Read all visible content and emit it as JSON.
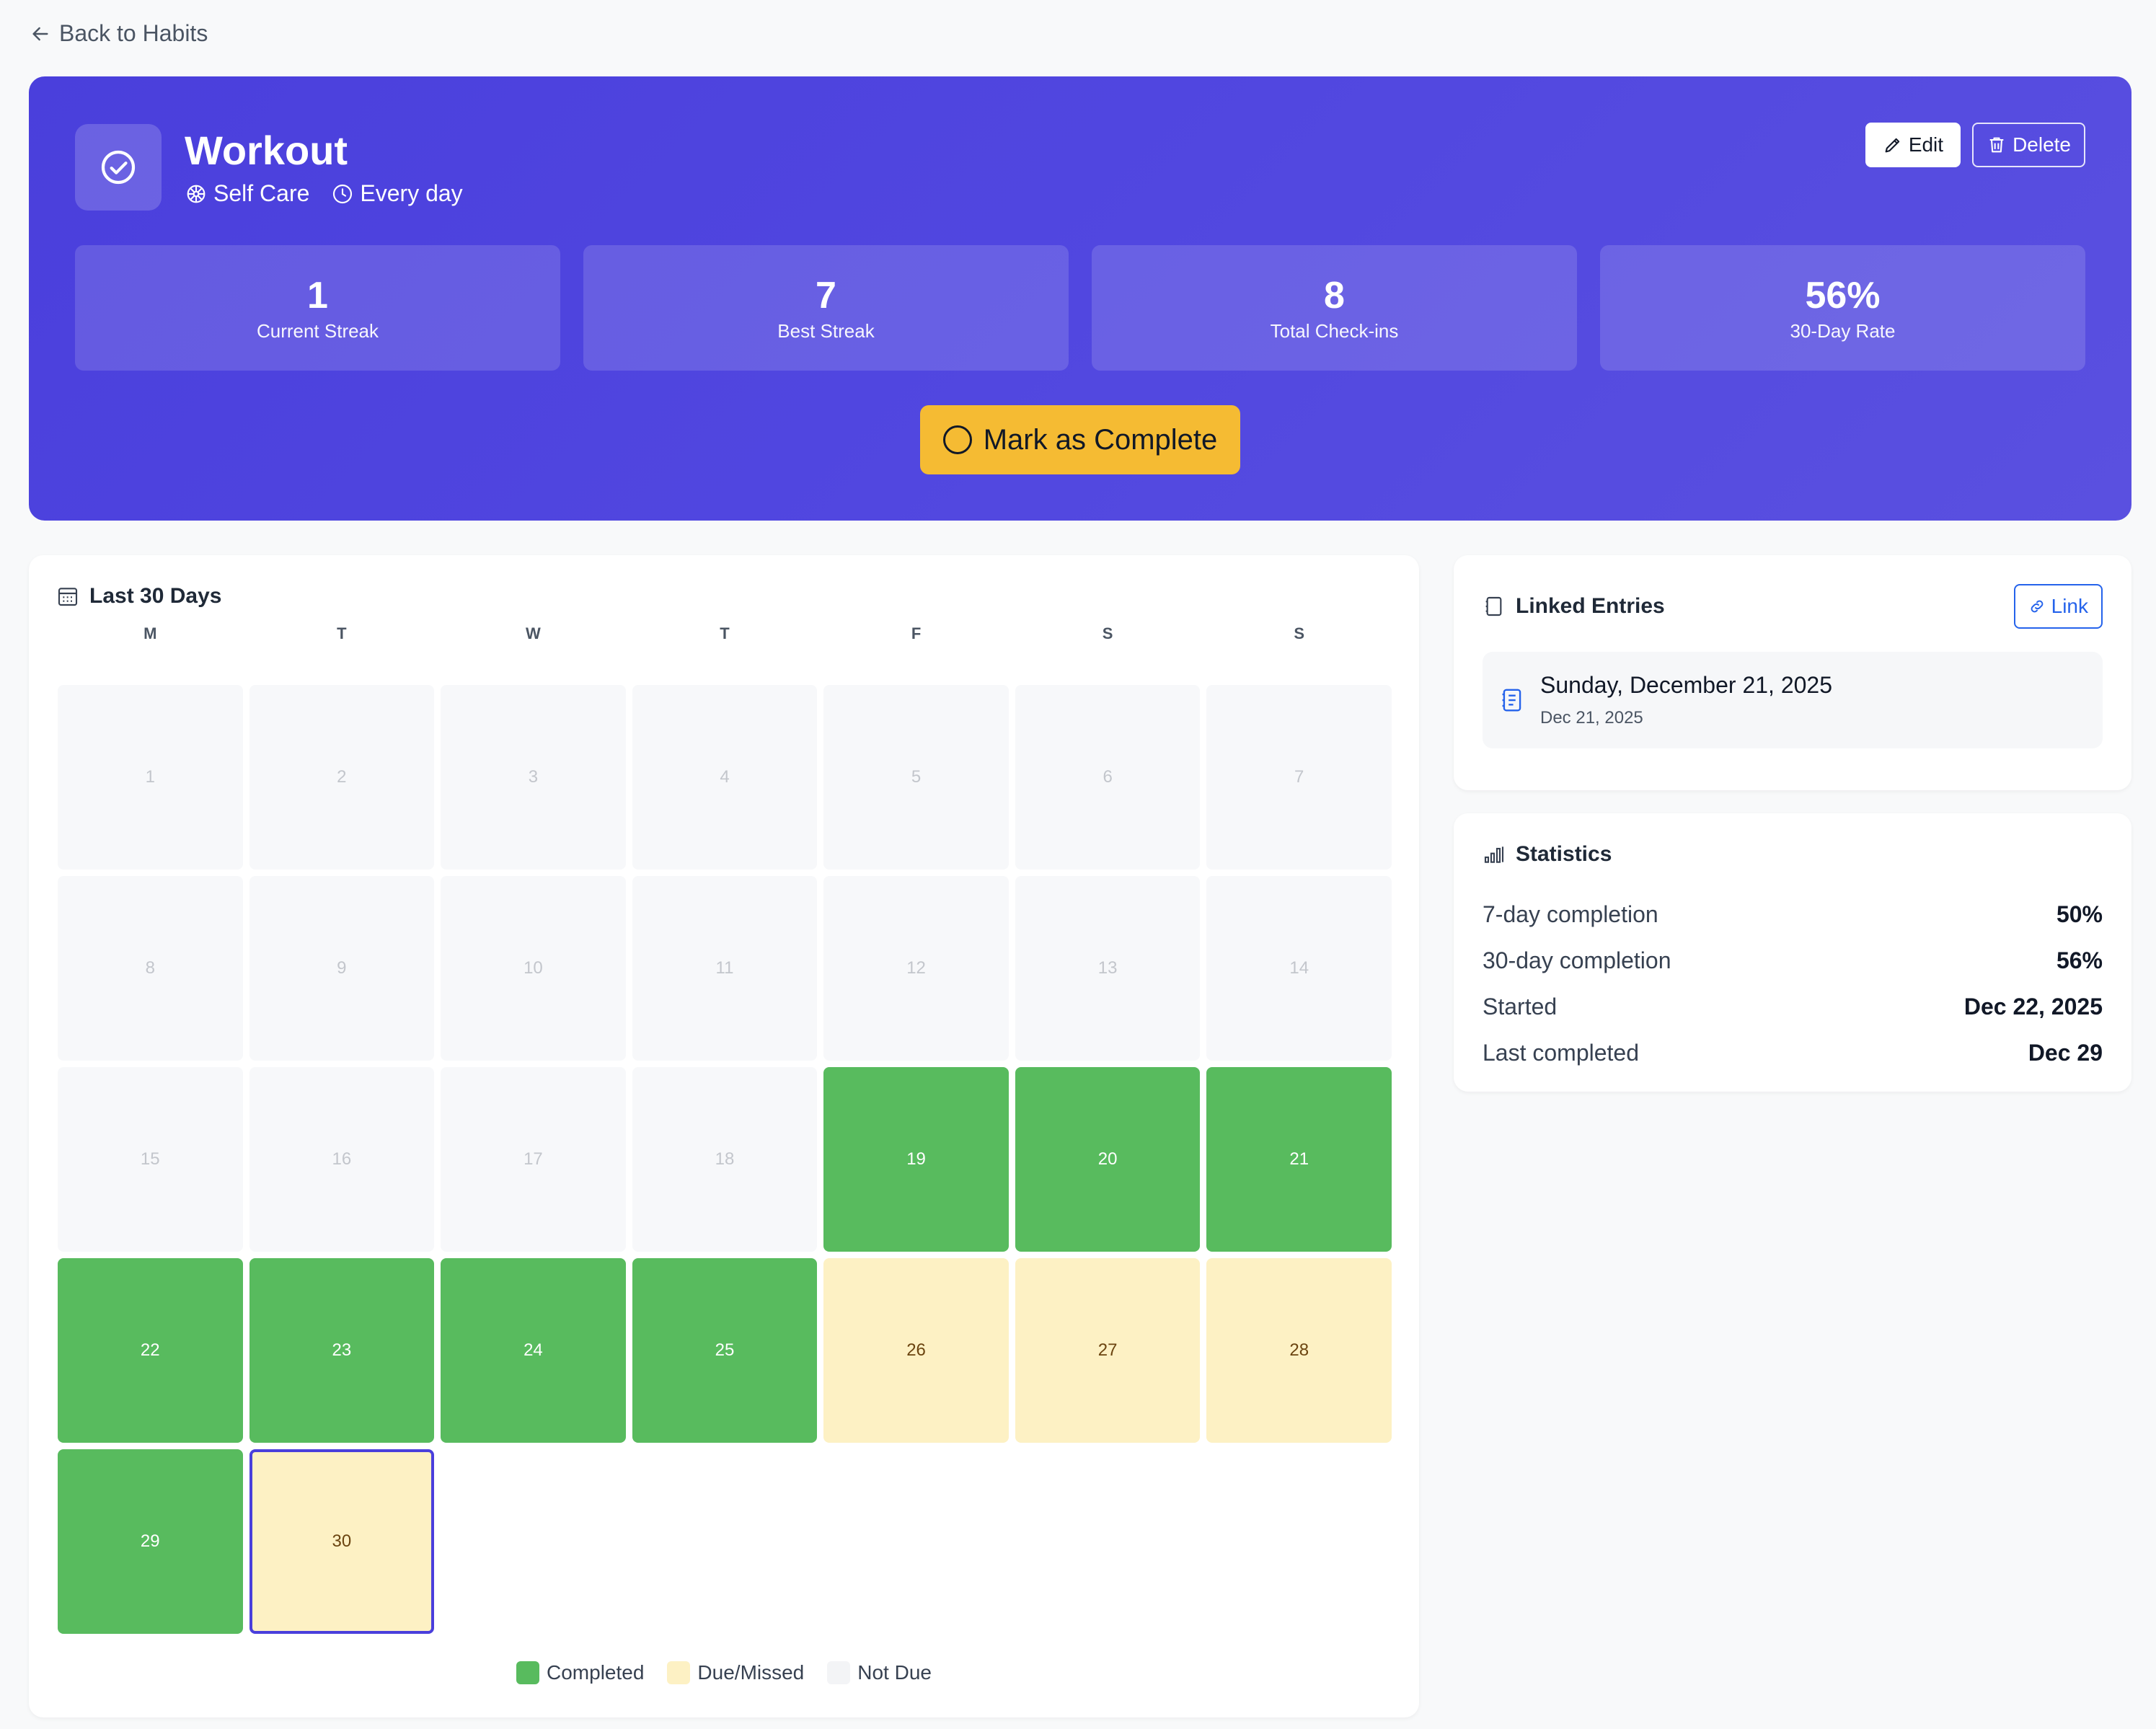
{
  "nav": {
    "back_label": "Back to Habits"
  },
  "habit": {
    "title": "Workout",
    "category": "Self Care",
    "frequency": "Every day",
    "edit_label": "Edit",
    "delete_label": "Delete",
    "mark_label": "Mark as Complete"
  },
  "summary": [
    {
      "value": "1",
      "label": "Current Streak"
    },
    {
      "value": "7",
      "label": "Best Streak"
    },
    {
      "value": "8",
      "label": "Total Check-ins"
    },
    {
      "value": "56%",
      "label": "30-Day Rate"
    }
  ],
  "calendar": {
    "title": "Last 30 Days",
    "weekdays": [
      "M",
      "T",
      "W",
      "T",
      "F",
      "S",
      "S"
    ],
    "days": [
      {
        "n": "1",
        "s": "not-due"
      },
      {
        "n": "2",
        "s": "not-due"
      },
      {
        "n": "3",
        "s": "not-due"
      },
      {
        "n": "4",
        "s": "not-due"
      },
      {
        "n": "5",
        "s": "not-due"
      },
      {
        "n": "6",
        "s": "not-due"
      },
      {
        "n": "7",
        "s": "not-due"
      },
      {
        "n": "8",
        "s": "not-due"
      },
      {
        "n": "9",
        "s": "not-due"
      },
      {
        "n": "10",
        "s": "not-due"
      },
      {
        "n": "11",
        "s": "not-due"
      },
      {
        "n": "12",
        "s": "not-due"
      },
      {
        "n": "13",
        "s": "not-due"
      },
      {
        "n": "14",
        "s": "not-due"
      },
      {
        "n": "15",
        "s": "not-due"
      },
      {
        "n": "16",
        "s": "not-due"
      },
      {
        "n": "17",
        "s": "not-due"
      },
      {
        "n": "18",
        "s": "not-due"
      },
      {
        "n": "19",
        "s": "completed"
      },
      {
        "n": "20",
        "s": "completed"
      },
      {
        "n": "21",
        "s": "completed"
      },
      {
        "n": "22",
        "s": "completed"
      },
      {
        "n": "23",
        "s": "completed"
      },
      {
        "n": "24",
        "s": "completed"
      },
      {
        "n": "25",
        "s": "completed"
      },
      {
        "n": "26",
        "s": "missed"
      },
      {
        "n": "27",
        "s": "missed"
      },
      {
        "n": "28",
        "s": "missed"
      },
      {
        "n": "29",
        "s": "completed"
      },
      {
        "n": "30",
        "s": "missed",
        "today": true
      }
    ],
    "legend": {
      "completed": "Completed",
      "missed": "Due/Missed",
      "not_due": "Not Due"
    },
    "colors": {
      "completed": "#58bb5e",
      "missed": "#fdf1c4",
      "not_due": "#f3f4f6",
      "today_border": "#4a3fdc"
    }
  },
  "linked": {
    "title": "Linked Entries",
    "link_label": "Link",
    "entries": [
      {
        "title": "Sunday, December 21, 2025",
        "date": "Dec 21, 2025"
      }
    ]
  },
  "statistics": {
    "title": "Statistics",
    "rows": [
      {
        "k": "7-day completion",
        "v": "50%"
      },
      {
        "k": "30-day completion",
        "v": "56%"
      },
      {
        "k": "Started",
        "v": "Dec 22, 2025"
      },
      {
        "k": "Last completed",
        "v": "Dec 29"
      }
    ]
  }
}
